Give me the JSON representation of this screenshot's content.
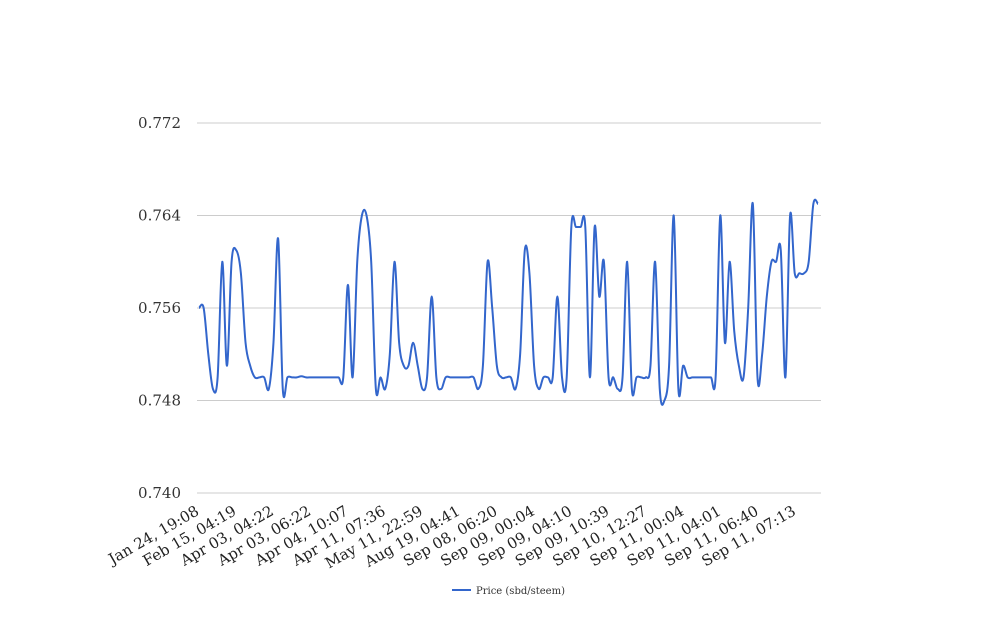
{
  "chart_data": {
    "type": "line",
    "title": "",
    "xlabel": "",
    "ylabel": "",
    "ylim": [
      0.74,
      0.772
    ],
    "yticks": [
      "0.740",
      "0.748",
      "0.756",
      "0.764",
      "0.772"
    ],
    "xtick_labels": [
      "Jan 24, 19:08",
      "Feb 15, 04:19",
      "Apr 03, 04:22",
      "Apr 03, 06:22",
      "Apr 04, 10:07",
      "Apr 11, 07:36",
      "May 11, 22:59",
      "Aug 19, 04:41",
      "Sep 08, 06:20",
      "Sep 09, 00:04",
      "Sep 09, 04:10",
      "Sep 09, 10:39",
      "Sep 10, 12:27",
      "Sep 11, 00:04",
      "Sep 11, 04:01",
      "Sep 11, 06:40",
      "Sep 11, 07:13"
    ],
    "grid": true,
    "legend_position": "bottom",
    "series": [
      {
        "name": "Price (sbd/steem)",
        "color": "#3366cc",
        "values": [
          0.756,
          0.756,
          0.752,
          0.749,
          0.75,
          0.76,
          0.751,
          0.76,
          0.761,
          0.759,
          0.753,
          0.751,
          0.75,
          0.75,
          0.75,
          0.749,
          0.753,
          0.762,
          0.749,
          0.75,
          0.75,
          0.75,
          0.7501,
          0.75,
          0.75,
          0.75,
          0.75,
          0.75,
          0.75,
          0.75,
          0.75,
          0.75,
          0.758,
          0.75,
          0.76,
          0.764,
          0.764,
          0.76,
          0.749,
          0.75,
          0.749,
          0.752,
          0.76,
          0.753,
          0.751,
          0.751,
          0.753,
          0.751,
          0.749,
          0.75,
          0.757,
          0.75,
          0.749,
          0.75,
          0.75,
          0.75,
          0.75,
          0.75,
          0.75,
          0.75,
          0.749,
          0.751,
          0.76,
          0.756,
          0.751,
          0.75,
          0.75,
          0.75,
          0.749,
          0.752,
          0.761,
          0.759,
          0.751,
          0.749,
          0.75,
          0.75,
          0.75,
          0.757,
          0.75,
          0.75,
          0.763,
          0.763,
          0.763,
          0.763,
          0.75,
          0.763,
          0.757,
          0.76,
          0.75,
          0.75,
          0.749,
          0.75,
          0.76,
          0.749,
          0.75,
          0.75,
          0.75,
          0.751,
          0.76,
          0.749,
          0.748,
          0.751,
          0.764,
          0.749,
          0.751,
          0.75,
          0.75,
          0.75,
          0.75,
          0.75,
          0.75,
          0.75,
          0.764,
          0.753,
          0.76,
          0.754,
          0.751,
          0.75,
          0.756,
          0.765,
          0.75,
          0.752,
          0.757,
          0.76,
          0.76,
          0.761,
          0.75,
          0.764,
          0.759,
          0.759,
          0.759,
          0.76,
          0.765,
          0.765
        ]
      }
    ]
  }
}
